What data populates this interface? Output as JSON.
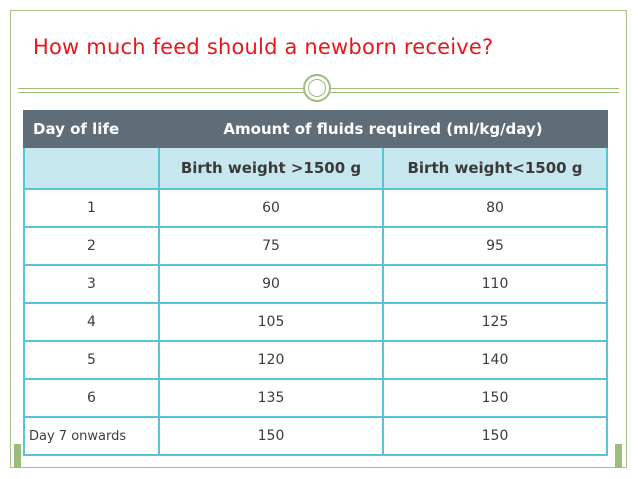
{
  "slide": {
    "title": "How much feed should a newborn receive?",
    "accent_color": "#9bbd7c",
    "title_color": "#e8161b"
  },
  "table": {
    "header_bg": "#5f6d78",
    "subheader_bg": "#c7e7ee",
    "border_color": "#58c3d9",
    "col_day": "Day of life",
    "col_amount": "Amount of fluids required (ml/kg/day)",
    "sub_gt": "Birth weight >1500 g",
    "sub_lt": "Birth weight<1500 g",
    "rows": [
      {
        "day": "1",
        "gt": "60",
        "lt": "80"
      },
      {
        "day": "2",
        "gt": "75",
        "lt": "95"
      },
      {
        "day": "3",
        "gt": "90",
        "lt": "110"
      },
      {
        "day": "4",
        "gt": "105",
        "lt": "125"
      },
      {
        "day": "5",
        "gt": "120",
        "lt": "140"
      },
      {
        "day": "6",
        "gt": "135",
        "lt": "150"
      },
      {
        "day": "Day 7 onwards",
        "gt": "150",
        "lt": "150"
      }
    ]
  }
}
